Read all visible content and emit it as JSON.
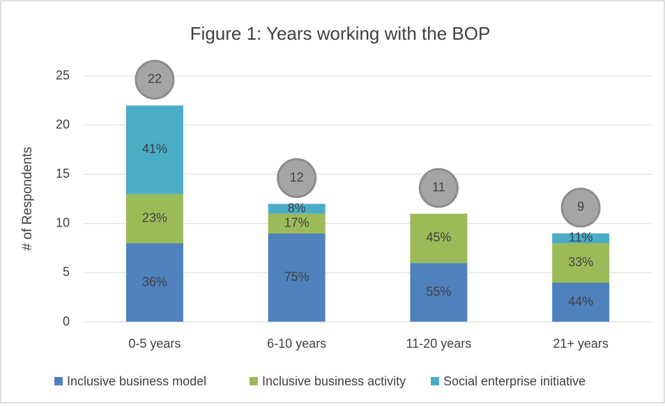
{
  "chart_data": {
    "type": "stacked_bar",
    "title": "Figure 1: Years working with the BOP",
    "y_label": "# of Respondents",
    "categories": [
      "0-5 years",
      "6-10 years",
      "11-20 years",
      "21+ years"
    ],
    "series": [
      {
        "name": "Inclusive business model",
        "color": "#4f81bd",
        "values": [
          8,
          9,
          6,
          4
        ],
        "share_labels": [
          "36%",
          "75%",
          "55%",
          "44%"
        ]
      },
      {
        "name": "Inclusive business activity",
        "color": "#9bbb59",
        "values": [
          5,
          2,
          5,
          4
        ],
        "share_labels": [
          "23%",
          "17%",
          "45%",
          "33%"
        ]
      },
      {
        "name": "Social enterprise initiative",
        "color": "#4bacc6",
        "values": [
          9,
          1,
          0,
          1
        ],
        "share_labels": [
          "41%",
          "8%",
          null,
          "11%"
        ]
      }
    ],
    "totals": [
      22,
      12,
      11,
      9
    ],
    "ylim": [
      0,
      25
    ],
    "yticks": [
      0,
      5,
      10,
      15,
      20,
      25
    ],
    "grid": true,
    "legend": "bottom"
  }
}
